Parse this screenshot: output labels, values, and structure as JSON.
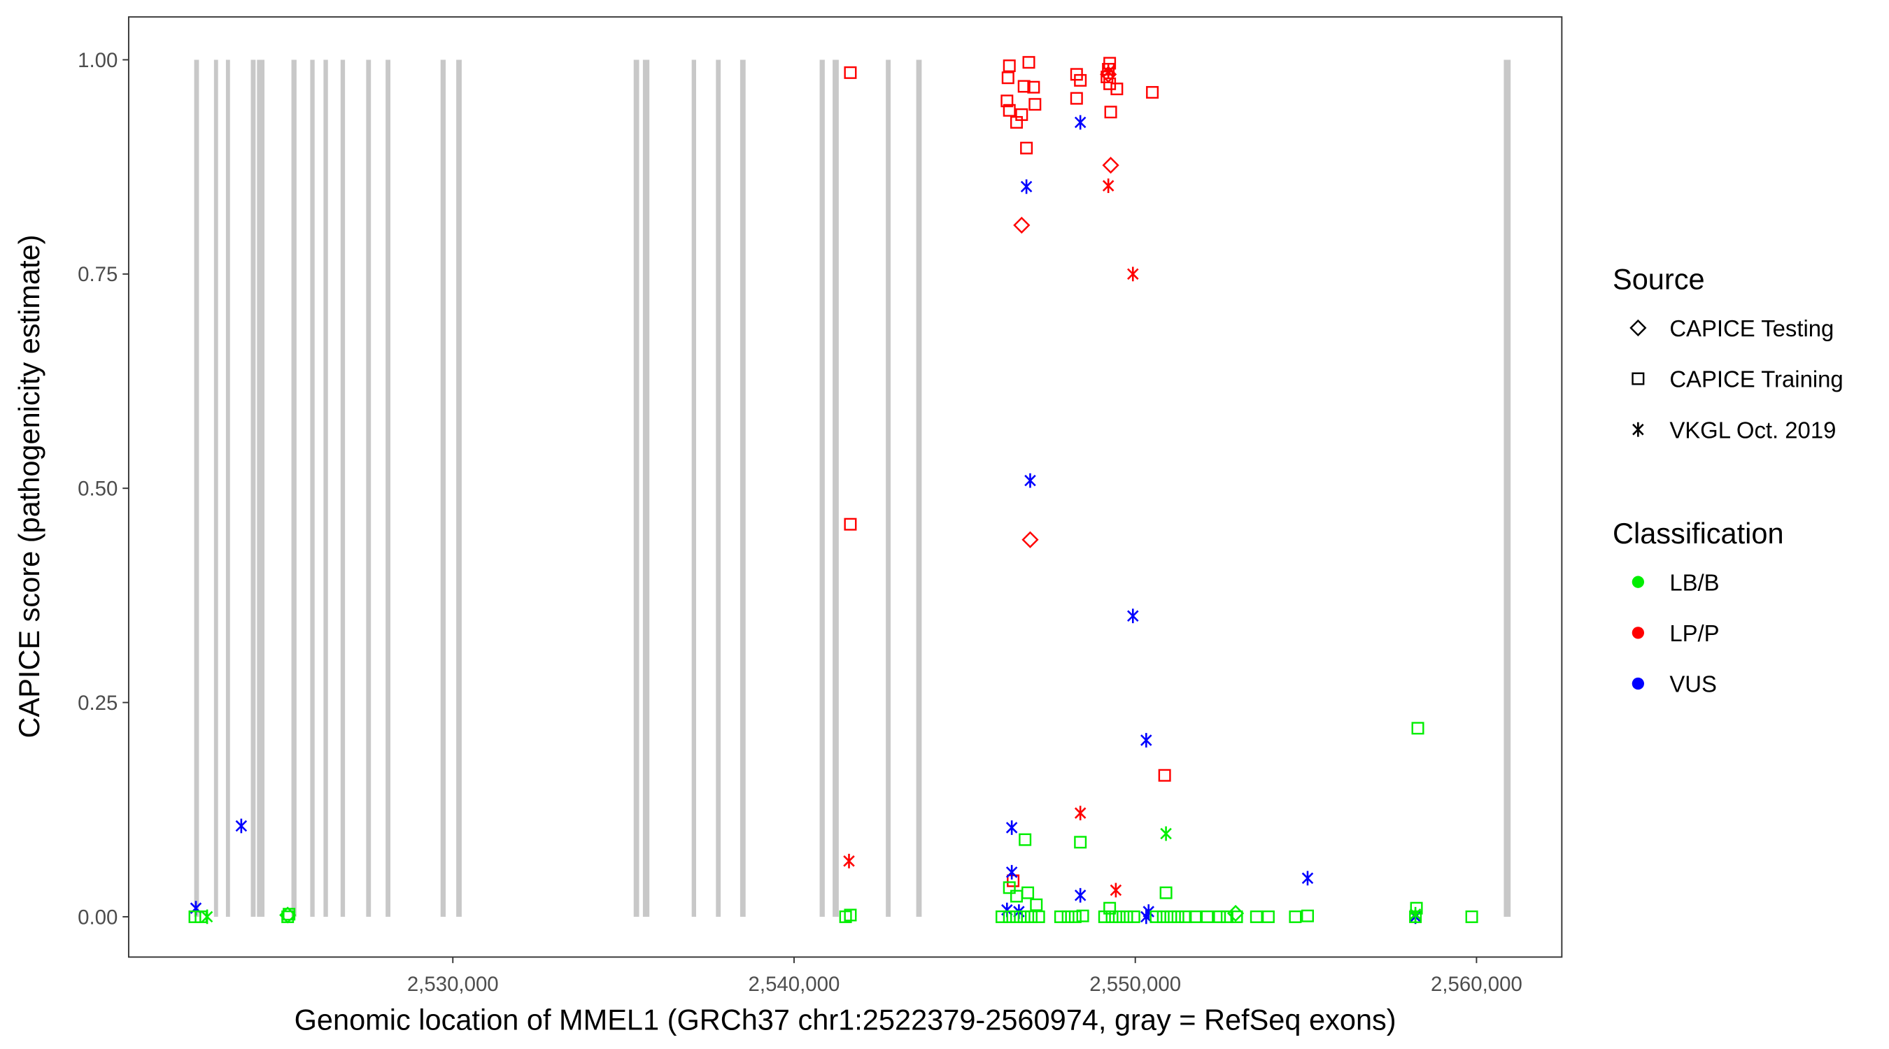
{
  "chart_data": {
    "type": "scatter",
    "xlabel": "Genomic location of MMEL1 (GRCh37 chr1:2522379-2560974, gray = RefSeq exons)",
    "ylabel": "CAPICE score (pathogenicity estimate)",
    "xlim": [
      2520500,
      2562500
    ],
    "ylim": [
      -0.047,
      1.05
    ],
    "xticks": [
      2530000,
      2540000,
      2550000,
      2560000
    ],
    "xtick_labels": [
      "2,530,000",
      "2,540,000",
      "2,550,000",
      "2,560,000"
    ],
    "yticks": [
      0,
      0.25,
      0.5,
      0.75,
      1.0
    ],
    "ytick_labels": [
      "0.00",
      "0.25",
      "0.50",
      "0.75",
      "1.00"
    ],
    "grid": false,
    "legend_placement": "right",
    "exon_color": "#c8c8c8",
    "exons": [
      [
        2522420,
        2522560
      ],
      [
        2523000,
        2523120
      ],
      [
        2523350,
        2523470
      ],
      [
        2524080,
        2524220
      ],
      [
        2524260,
        2524480
      ],
      [
        2525270,
        2525420
      ],
      [
        2525820,
        2525950
      ],
      [
        2526210,
        2526340
      ],
      [
        2526710,
        2526840
      ],
      [
        2527460,
        2527600
      ],
      [
        2528030,
        2528170
      ],
      [
        2529640,
        2529790
      ],
      [
        2530100,
        2530260
      ],
      [
        2535300,
        2535460
      ],
      [
        2535570,
        2535760
      ],
      [
        2537000,
        2537130
      ],
      [
        2537710,
        2537850
      ],
      [
        2538420,
        2538580
      ],
      [
        2540750,
        2540900
      ],
      [
        2541130,
        2541310
      ],
      [
        2542690,
        2542830
      ],
      [
        2543580,
        2543740
      ],
      [
        2560800,
        2561000
      ]
    ],
    "legend": {
      "source_title": "Source",
      "sources": [
        {
          "key": "Testing",
          "label": "CAPICE Testing",
          "shape": "diamond"
        },
        {
          "key": "Training",
          "label": "CAPICE Training",
          "shape": "square"
        },
        {
          "key": "VKGL",
          "label": "VKGL Oct. 2019",
          "shape": "asterisk"
        }
      ],
      "class_title": "Classification",
      "classes": [
        {
          "key": "LB/B",
          "label": "LB/B",
          "color": "#00ee00"
        },
        {
          "key": "LP/P",
          "label": "LP/P",
          "color": "#ff0000"
        },
        {
          "key": "VUS",
          "label": "VUS",
          "color": "#0000ff"
        }
      ]
    },
    "points": [
      [
        2541650,
        0.985,
        "Training",
        "LP/P"
      ],
      [
        2546310,
        0.993,
        "Training",
        "LP/P"
      ],
      [
        2546270,
        0.979,
        "Training",
        "LP/P"
      ],
      [
        2546880,
        0.997,
        "Training",
        "LP/P"
      ],
      [
        2546240,
        0.952,
        "Training",
        "LP/P"
      ],
      [
        2546310,
        0.941,
        "Training",
        "LP/P"
      ],
      [
        2546740,
        0.969,
        "Training",
        "LP/P"
      ],
      [
        2547020,
        0.968,
        "Training",
        "LP/P"
      ],
      [
        2546520,
        0.927,
        "Training",
        "LP/P"
      ],
      [
        2546670,
        0.936,
        "Training",
        "LP/P"
      ],
      [
        2547060,
        0.948,
        "Training",
        "LP/P"
      ],
      [
        2546810,
        0.897,
        "Training",
        "LP/P"
      ],
      [
        2548280,
        0.983,
        "Training",
        "LP/P"
      ],
      [
        2548390,
        0.976,
        "Training",
        "LP/P"
      ],
      [
        2548280,
        0.955,
        "Training",
        "LP/P"
      ],
      [
        2549250,
        0.996,
        "Training",
        "LP/P"
      ],
      [
        2549210,
        0.989,
        "Training",
        "LP/P"
      ],
      [
        2549170,
        0.98,
        "Training",
        "LP/P"
      ],
      [
        2549250,
        0.972,
        "Training",
        "LP/P"
      ],
      [
        2549460,
        0.966,
        "Training",
        "LP/P"
      ],
      [
        2549280,
        0.939,
        "Training",
        "LP/P"
      ],
      [
        2550500,
        0.962,
        "Training",
        "LP/P"
      ],
      [
        2541650,
        0.458,
        "Training",
        "LP/P"
      ],
      [
        2550860,
        0.165,
        "Training",
        "LP/P"
      ],
      [
        2546420,
        0.042,
        "Training",
        "LP/P"
      ],
      [
        2549280,
        0.877,
        "Testing",
        "LP/P"
      ],
      [
        2546670,
        0.807,
        "Testing",
        "LP/P"
      ],
      [
        2546920,
        0.44,
        "Testing",
        "LP/P"
      ],
      [
        2549210,
        0.983,
        "Testing",
        "LP/P"
      ],
      [
        2549210,
        0.853,
        "VKGL",
        "LP/P"
      ],
      [
        2549930,
        0.75,
        "VKGL",
        "LP/P"
      ],
      [
        2548390,
        0.121,
        "VKGL",
        "LP/P"
      ],
      [
        2541610,
        0.065,
        "VKGL",
        "LP/P"
      ],
      [
        2549430,
        0.031,
        "VKGL",
        "LP/P"
      ],
      [
        2549210,
        0.986,
        "VKGL",
        "LP/P"
      ],
      [
        2548390,
        0.927,
        "VKGL",
        "VUS"
      ],
      [
        2546810,
        0.852,
        "VKGL",
        "VUS"
      ],
      [
        2546920,
        0.509,
        "VKGL",
        "VUS"
      ],
      [
        2549930,
        0.351,
        "VKGL",
        "VUS"
      ],
      [
        2550320,
        0.206,
        "VKGL",
        "VUS"
      ],
      [
        2546380,
        0.104,
        "VKGL",
        "VUS"
      ],
      [
        2523800,
        0.106,
        "VKGL",
        "VUS"
      ],
      [
        2546380,
        0.052,
        "VKGL",
        "VUS"
      ],
      [
        2548390,
        0.025,
        "VKGL",
        "VUS"
      ],
      [
        2555050,
        0.045,
        "VKGL",
        "VUS"
      ],
      [
        2522470,
        0.01,
        "VKGL",
        "VUS"
      ],
      [
        2546240,
        0.008,
        "VKGL",
        "VUS"
      ],
      [
        2546590,
        0.006,
        "VKGL",
        "VUS"
      ],
      [
        2550390,
        0.006,
        "VKGL",
        "VUS"
      ],
      [
        2550320,
        0.0,
        "VKGL",
        "VUS"
      ],
      [
        2558210,
        0.0,
        "VKGL",
        "VUS"
      ],
      [
        2550900,
        0.097,
        "VKGL",
        "LB/B"
      ],
      [
        2522800,
        0.0,
        "VKGL",
        "LB/B"
      ],
      [
        2558210,
        0.003,
        "VKGL",
        "LB/B"
      ],
      [
        2558280,
        0.22,
        "Training",
        "LB/B"
      ],
      [
        2546770,
        0.09,
        "Training",
        "LB/B"
      ],
      [
        2548390,
        0.087,
        "Training",
        "LB/B"
      ],
      [
        2550900,
        0.028,
        "Training",
        "LB/B"
      ],
      [
        2546310,
        0.034,
        "Training",
        "LB/B"
      ],
      [
        2546520,
        0.024,
        "Training",
        "LB/B"
      ],
      [
        2546850,
        0.028,
        "Training",
        "LB/B"
      ],
      [
        2547100,
        0.014,
        "Training",
        "LB/B"
      ],
      [
        2549250,
        0.01,
        "Training",
        "LB/B"
      ],
      [
        2558240,
        0.01,
        "Training",
        "LB/B"
      ],
      [
        2522440,
        0.0,
        "Training",
        "LB/B"
      ],
      [
        2522620,
        0.0,
        "Training",
        "LB/B"
      ],
      [
        2525160,
        0.0,
        "Training",
        "LB/B"
      ],
      [
        2525200,
        0.003,
        "Training",
        "LB/B"
      ],
      [
        2541510,
        0.0,
        "Training",
        "LB/B"
      ],
      [
        2541650,
        0.002,
        "Training",
        "LB/B"
      ],
      [
        2546090,
        0.0,
        "Training",
        "LB/B"
      ],
      [
        2546310,
        0.0,
        "Training",
        "LB/B"
      ],
      [
        2546520,
        0.0,
        "Training",
        "LB/B"
      ],
      [
        2546740,
        0.0,
        "Training",
        "LB/B"
      ],
      [
        2546950,
        0.0,
        "Training",
        "LB/B"
      ],
      [
        2547170,
        0.0,
        "Training",
        "LB/B"
      ],
      [
        2547810,
        0.0,
        "Training",
        "LB/B"
      ],
      [
        2548030,
        0.0,
        "Training",
        "LB/B"
      ],
      [
        2548240,
        0.0,
        "Training",
        "LB/B"
      ],
      [
        2548460,
        0.001,
        "Training",
        "LB/B"
      ],
      [
        2549100,
        0.0,
        "Training",
        "LB/B"
      ],
      [
        2549320,
        0.0,
        "Training",
        "LB/B"
      ],
      [
        2549530,
        0.0,
        "Training",
        "LB/B"
      ],
      [
        2549750,
        0.0,
        "Training",
        "LB/B"
      ],
      [
        2549960,
        0.0,
        "Training",
        "LB/B"
      ],
      [
        2550610,
        0.0,
        "Training",
        "LB/B"
      ],
      [
        2550820,
        0.0,
        "Training",
        "LB/B"
      ],
      [
        2551040,
        0.0,
        "Training",
        "LB/B"
      ],
      [
        2551250,
        0.0,
        "Training",
        "LB/B"
      ],
      [
        2551470,
        0.0,
        "Training",
        "LB/B"
      ],
      [
        2551760,
        0.0,
        "Training",
        "LB/B"
      ],
      [
        2552110,
        0.0,
        "Training",
        "LB/B"
      ],
      [
        2552470,
        0.0,
        "Training",
        "LB/B"
      ],
      [
        2552690,
        0.0,
        "Training",
        "LB/B"
      ],
      [
        2552970,
        0.0,
        "Training",
        "LB/B"
      ],
      [
        2553550,
        0.0,
        "Training",
        "LB/B"
      ],
      [
        2553900,
        0.0,
        "Training",
        "LB/B"
      ],
      [
        2554690,
        0.0,
        "Training",
        "LB/B"
      ],
      [
        2555050,
        0.001,
        "Training",
        "LB/B"
      ],
      [
        2558210,
        0.0,
        "Training",
        "LB/B"
      ],
      [
        2559860,
        0.0,
        "Training",
        "LB/B"
      ],
      [
        2552940,
        0.004,
        "Testing",
        "LB/B"
      ],
      [
        2525160,
        0.002,
        "Testing",
        "LB/B"
      ]
    ]
  }
}
